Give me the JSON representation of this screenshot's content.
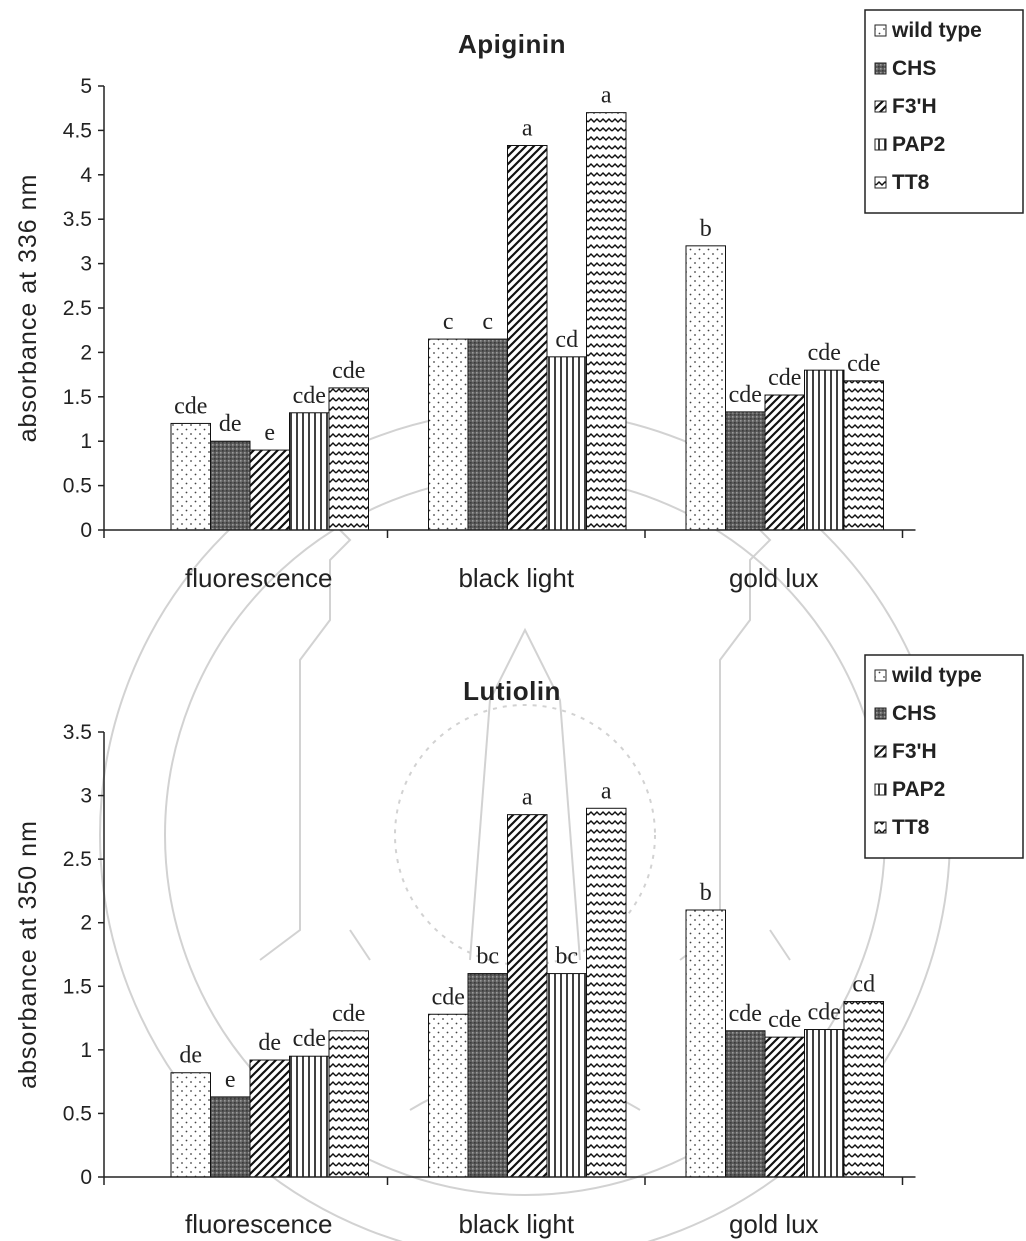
{
  "chart_data": [
    {
      "type": "bar",
      "title": "Apiginin",
      "xlabel": "",
      "ylabel": "absorbance at 336 nm",
      "ylim": [
        0,
        5
      ],
      "yticks": [
        "0",
        "0.5",
        "1",
        "1.5",
        "2",
        "2.5",
        "3",
        "3.5",
        "4",
        "4.5",
        "5"
      ],
      "categories": [
        "fluorescence",
        "black light",
        "gold lux"
      ],
      "legend_position": "top-right",
      "series": [
        {
          "name": "wild type",
          "pattern": "dots",
          "values": [
            1.2,
            2.15,
            3.2
          ],
          "labels": [
            "cde",
            "c",
            "b"
          ]
        },
        {
          "name": "CHS",
          "pattern": "dark",
          "values": [
            1.0,
            2.15,
            1.33
          ],
          "labels": [
            "de",
            "c",
            "cde"
          ]
        },
        {
          "name": "F3'H",
          "pattern": "diag",
          "values": [
            0.9,
            4.33,
            1.52
          ],
          "labels": [
            "e",
            "a",
            "cde"
          ]
        },
        {
          "name": "PAP2",
          "pattern": "vert",
          "values": [
            1.32,
            1.95,
            1.8
          ],
          "labels": [
            "cde",
            "cd",
            "cde"
          ]
        },
        {
          "name": "TT8",
          "pattern": "wave",
          "values": [
            1.6,
            4.7,
            1.68
          ],
          "labels": [
            "cde",
            "a",
            "cde"
          ]
        }
      ]
    },
    {
      "type": "bar",
      "title": "Lutiolin",
      "xlabel": "",
      "ylabel": "absorbance at 350 nm",
      "ylim": [
        0,
        3.5
      ],
      "yticks": [
        "0",
        "0.5",
        "1",
        "1.5",
        "2",
        "2.5",
        "3",
        "3.5"
      ],
      "categories": [
        "fluorescence",
        "black light",
        "gold lux"
      ],
      "legend_position": "top-right",
      "series": [
        {
          "name": "wild type",
          "pattern": "dots",
          "values": [
            0.82,
            1.28,
            2.1
          ],
          "labels": [
            "de",
            "cde",
            "b"
          ]
        },
        {
          "name": "CHS",
          "pattern": "dark",
          "values": [
            0.63,
            1.6,
            1.15
          ],
          "labels": [
            "e",
            "bc",
            "cde"
          ]
        },
        {
          "name": "F3'H",
          "pattern": "diag",
          "values": [
            0.92,
            2.85,
            1.1
          ],
          "labels": [
            "de",
            "a",
            "cde"
          ]
        },
        {
          "name": "PAP2",
          "pattern": "vert",
          "values": [
            0.95,
            1.6,
            1.16
          ],
          "labels": [
            "cde",
            "bc",
            "cde"
          ]
        },
        {
          "name": "TT8",
          "pattern": "wave",
          "values": [
            1.15,
            2.9,
            1.38
          ],
          "labels": [
            "cde",
            "a",
            "cd"
          ]
        }
      ]
    }
  ]
}
